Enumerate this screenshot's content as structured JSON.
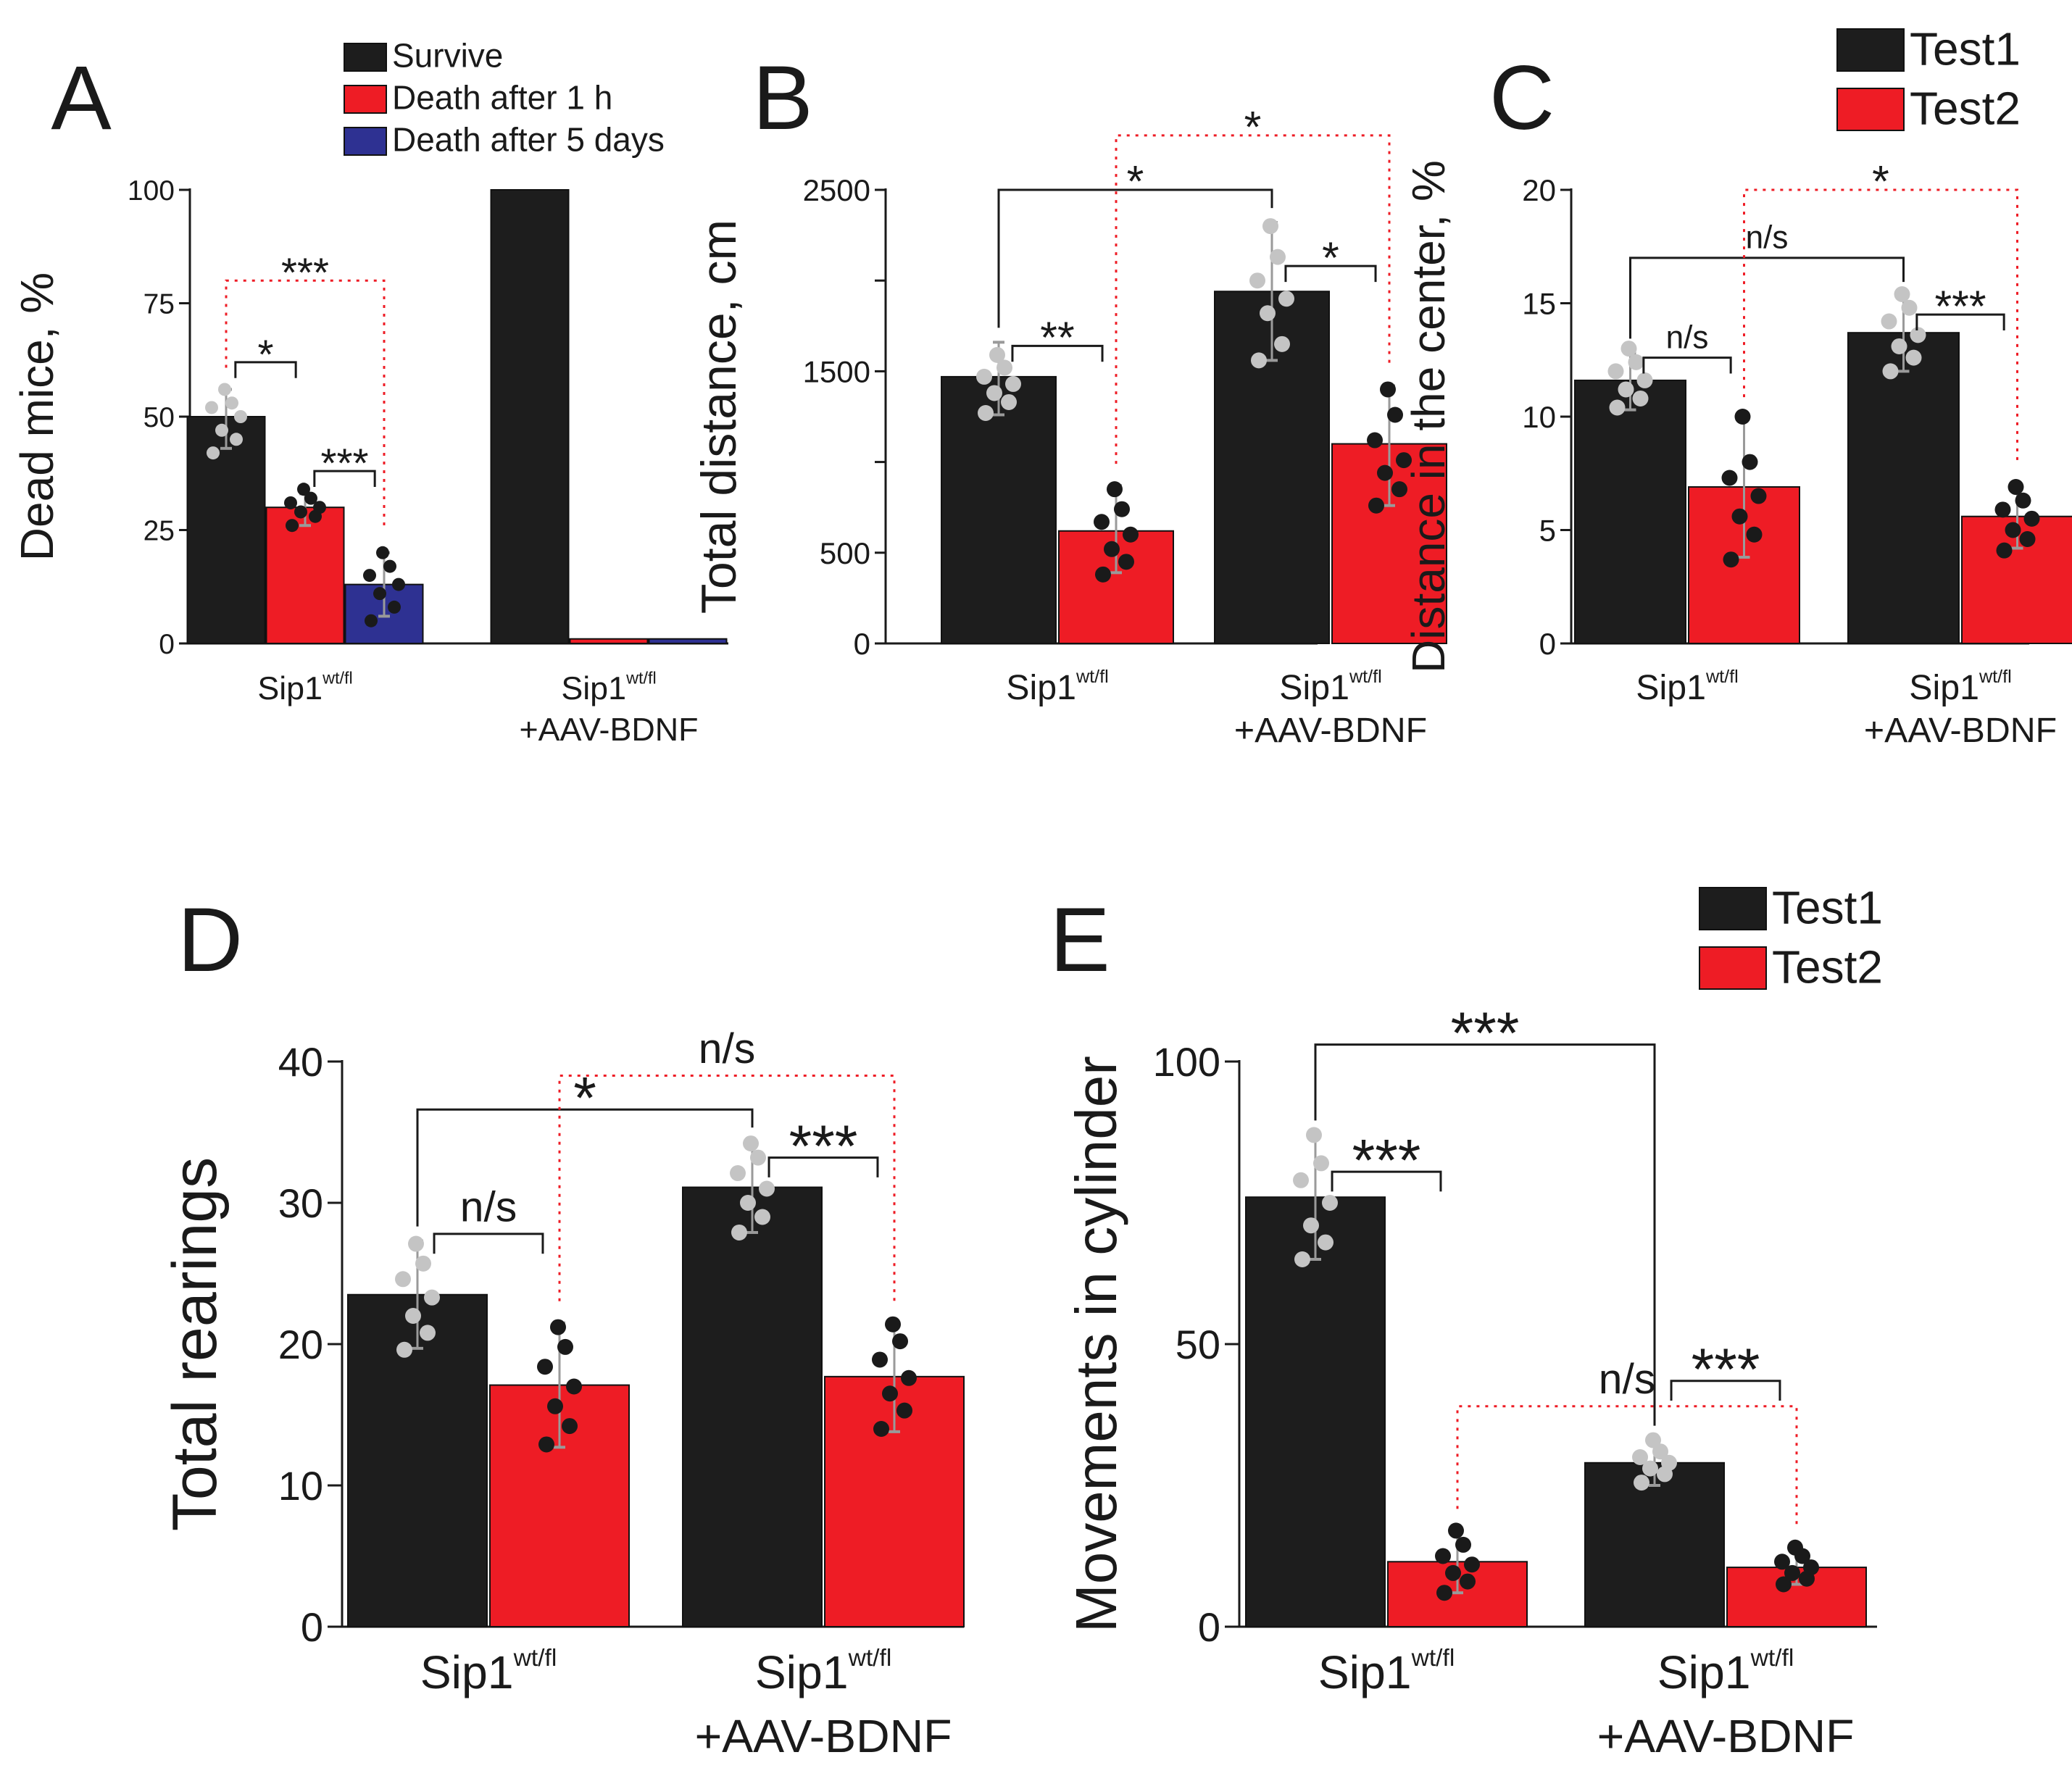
{
  "colors": {
    "black": "#1d1d1d",
    "red": "#ee1c25",
    "blue": "#2e3192",
    "dot_gray": "#c4c4c4",
    "dot_black": "#1a1a1a",
    "err_gray": "#9a9a9a",
    "axis": "#1a1a1a",
    "sig_red": "#ee1c25"
  },
  "chart_data": [
    {
      "panel": "A",
      "type": "bar",
      "ylabel": "Dead mice, %",
      "ylim": [
        0,
        100
      ],
      "ticks": [
        0,
        25,
        50,
        75,
        100
      ],
      "legend": {
        "placement": "top-right",
        "entries": [
          {
            "label": "Survive",
            "color": "#1d1d1d"
          },
          {
            "label": "Death after 1 h",
            "color": "#ee1c25"
          },
          {
            "label": "Death after 5 days",
            "color": "#2e3192"
          }
        ]
      },
      "groups": [
        {
          "label": "Sip1",
          "sup": "wt/fl",
          "line2": ""
        },
        {
          "label": "Sip1",
          "sup": "wt/fl",
          "line2": "+AAV-BDNF"
        }
      ],
      "bars": [
        {
          "group": 0,
          "slot": 0,
          "n": 3,
          "value": 50,
          "color": "#1d1d1d",
          "err": [
            43,
            56
          ],
          "dots": [
            42,
            45,
            47,
            50,
            52,
            53,
            56
          ],
          "dot_color": "#c4c4c4"
        },
        {
          "group": 0,
          "slot": 1,
          "n": 3,
          "value": 30,
          "color": "#ee1c25",
          "err": [
            26,
            33
          ],
          "dots": [
            26,
            28,
            29,
            30,
            31,
            32,
            34
          ],
          "dot_color": "#1a1a1a"
        },
        {
          "group": 0,
          "slot": 2,
          "n": 3,
          "value": 13,
          "color": "#2e3192",
          "err": [
            6,
            20
          ],
          "dots": [
            5,
            8,
            11,
            13,
            15,
            17,
            20
          ],
          "dot_color": "#1a1a1a"
        },
        {
          "group": 1,
          "slot": 0,
          "n": 3,
          "value": 100,
          "color": "#1d1d1d"
        },
        {
          "group": 1,
          "slot": 1,
          "n": 3,
          "value": 1,
          "color": "#ee1c25"
        },
        {
          "group": 1,
          "slot": 2,
          "n": 3,
          "value": 1,
          "color": "#2e3192"
        }
      ],
      "brackets": [
        {
          "a": 0,
          "b": 1,
          "y": 62,
          "label": "*",
          "color": "black",
          "style": "solid"
        },
        {
          "a": 1,
          "b": 2,
          "y": 38,
          "label": "***",
          "color": "black",
          "style": "solid"
        },
        {
          "a": 0,
          "b": 2,
          "y": 80,
          "label": "***",
          "color": "red",
          "style": "dotted"
        }
      ]
    },
    {
      "panel": "B",
      "type": "bar",
      "ylabel": "Total distance, cm",
      "ylim": [
        0,
        2500
      ],
      "ticks": [
        0,
        500,
        1500,
        2500
      ],
      "minor_ticks": [
        1000,
        2000
      ],
      "groups": [
        {
          "label": "Sip1",
          "sup": "wt/fl",
          "line2": ""
        },
        {
          "label": "Sip1",
          "sup": "wt/fl",
          "line2": "+AAV-BDNF"
        }
      ],
      "bars": [
        {
          "group": 0,
          "slot": 0,
          "n": 2,
          "value": 1470,
          "color": "#1d1d1d",
          "err": [
            1260,
            1660
          ],
          "dots": [
            1270,
            1330,
            1380,
            1430,
            1470,
            1520,
            1590
          ],
          "dot_color": "#c4c4c4"
        },
        {
          "group": 0,
          "slot": 1,
          "n": 2,
          "value": 620,
          "color": "#ee1c25",
          "err": [
            390,
            870
          ],
          "dots": [
            380,
            450,
            520,
            600,
            670,
            740,
            850
          ],
          "dot_color": "#1a1a1a"
        },
        {
          "group": 1,
          "slot": 0,
          "n": 2,
          "value": 1940,
          "color": "#1d1d1d",
          "err": [
            1560,
            2320
          ],
          "dots": [
            1560,
            1650,
            1820,
            1900,
            2000,
            2130,
            2300
          ],
          "dot_color": "#c4c4c4"
        },
        {
          "group": 1,
          "slot": 1,
          "n": 2,
          "value": 1100,
          "color": "#ee1c25",
          "err": [
            760,
            1420
          ],
          "dots": [
            760,
            850,
            940,
            1010,
            1120,
            1260,
            1400
          ],
          "dot_color": "#1a1a1a"
        }
      ],
      "brackets": [
        {
          "a": 0,
          "b": 1,
          "y": 1640,
          "label": "**",
          "color": "black",
          "style": "solid"
        },
        {
          "a": 2,
          "b": 3,
          "y": 2080,
          "label": "*",
          "color": "black",
          "style": "solid"
        },
        {
          "a": 0,
          "b": 2,
          "y": 2500,
          "label": "*",
          "color": "black",
          "style": "solid"
        },
        {
          "a": 1,
          "b": 3,
          "y": 2800,
          "label": "*",
          "color": "red",
          "style": "dotted"
        }
      ]
    },
    {
      "panel": "C",
      "type": "bar",
      "ylabel": "Distance in the center, %",
      "ylim": [
        0,
        20
      ],
      "ticks": [
        0,
        5,
        10,
        15,
        20
      ],
      "legend": {
        "placement": "top-right",
        "entries": [
          {
            "label": "Test1",
            "color": "#1d1d1d"
          },
          {
            "label": "Test2",
            "color": "#ee1c25"
          }
        ]
      },
      "groups": [
        {
          "label": "Sip1",
          "sup": "wt/fl",
          "line2": ""
        },
        {
          "label": "Sip1",
          "sup": "wt/fl",
          "line2": "+AAV-BDNF"
        }
      ],
      "bars": [
        {
          "group": 0,
          "slot": 0,
          "n": 2,
          "value": 11.6,
          "color": "#1d1d1d",
          "err": [
            10.3,
            12.8
          ],
          "dots": [
            10.4,
            10.8,
            11.2,
            11.6,
            12.0,
            12.4,
            13.0
          ],
          "dot_color": "#c4c4c4"
        },
        {
          "group": 0,
          "slot": 1,
          "n": 2,
          "value": 6.9,
          "color": "#ee1c25",
          "err": [
            3.8,
            9.9
          ],
          "dots": [
            3.7,
            4.8,
            5.6,
            6.5,
            7.3,
            8.0,
            10.0
          ],
          "dot_color": "#1a1a1a"
        },
        {
          "group": 1,
          "slot": 0,
          "n": 2,
          "value": 13.7,
          "color": "#1d1d1d",
          "err": [
            12.0,
            15.3
          ],
          "dots": [
            12.0,
            12.6,
            13.1,
            13.6,
            14.2,
            14.8,
            15.4
          ],
          "dot_color": "#c4c4c4"
        },
        {
          "group": 1,
          "slot": 1,
          "n": 2,
          "value": 5.6,
          "color": "#ee1c25",
          "err": [
            4.2,
            7.0
          ],
          "dots": [
            4.1,
            4.6,
            5.0,
            5.5,
            5.9,
            6.3,
            6.9
          ],
          "dot_color": "#1a1a1a"
        }
      ],
      "brackets": [
        {
          "a": 0,
          "b": 1,
          "y": 12.6,
          "label": "n/s",
          "color": "black",
          "style": "solid"
        },
        {
          "a": 2,
          "b": 3,
          "y": 14.5,
          "label": "***",
          "color": "black",
          "style": "solid"
        },
        {
          "a": 0,
          "b": 2,
          "y": 17.0,
          "label": "n/s",
          "color": "black",
          "style": "solid"
        },
        {
          "a": 1,
          "b": 3,
          "y": 20.0,
          "label": "*",
          "color": "red",
          "style": "dotted"
        }
      ]
    },
    {
      "panel": "D",
      "type": "bar",
      "ylabel": "Total rearings",
      "ylim": [
        0,
        40
      ],
      "ticks": [
        0,
        10,
        20,
        30,
        40
      ],
      "groups": [
        {
          "label": "Sip1",
          "sup": "wt/fl",
          "line2": ""
        },
        {
          "label": "Sip1",
          "sup": "wt/fl",
          "line2": "+AAV-BDNF"
        }
      ],
      "bars": [
        {
          "group": 0,
          "slot": 0,
          "n": 2,
          "value": 23.5,
          "color": "#1d1d1d",
          "err": [
            19.7,
            27.3
          ],
          "dots": [
            19.6,
            20.8,
            22.0,
            23.3,
            24.6,
            25.7,
            27.1
          ],
          "dot_color": "#c4c4c4"
        },
        {
          "group": 0,
          "slot": 1,
          "n": 2,
          "value": 17.1,
          "color": "#ee1c25",
          "err": [
            12.7,
            21.5
          ],
          "dots": [
            12.9,
            14.2,
            15.6,
            17.0,
            18.4,
            19.8,
            21.2
          ],
          "dot_color": "#1a1a1a"
        },
        {
          "group": 1,
          "slot": 0,
          "n": 2,
          "value": 31.1,
          "color": "#1d1d1d",
          "err": [
            27.9,
            34.3
          ],
          "dots": [
            27.9,
            29.0,
            30.0,
            31.0,
            32.1,
            33.2,
            34.2
          ],
          "dot_color": "#c4c4c4"
        },
        {
          "group": 1,
          "slot": 1,
          "n": 2,
          "value": 17.7,
          "color": "#ee1c25",
          "err": [
            13.8,
            21.4
          ],
          "dots": [
            14.0,
            15.3,
            16.5,
            17.6,
            18.9,
            20.2,
            21.4
          ],
          "dot_color": "#1a1a1a"
        }
      ],
      "brackets": [
        {
          "a": 0,
          "b": 1,
          "y": 27.8,
          "label": "n/s",
          "color": "black",
          "style": "solid"
        },
        {
          "a": 2,
          "b": 3,
          "y": 33.2,
          "label": "***",
          "color": "black",
          "style": "solid"
        },
        {
          "a": 0,
          "b": 2,
          "y": 36.6,
          "label": "*",
          "color": "black",
          "style": "solid"
        },
        {
          "a": 1,
          "b": 3,
          "y": 39.0,
          "label": "n/s",
          "color": "red",
          "style": "dotted"
        }
      ]
    },
    {
      "panel": "E",
      "type": "bar",
      "ylabel": "Movements in cylinder",
      "ylim": [
        0,
        100
      ],
      "ticks": [
        0,
        50,
        100
      ],
      "legend": {
        "placement": "top-right",
        "entries": [
          {
            "label": "Test1",
            "color": "#1d1d1d"
          },
          {
            "label": "Test2",
            "color": "#ee1c25"
          }
        ]
      },
      "groups": [
        {
          "label": "Sip1",
          "sup": "wt/fl",
          "line2": ""
        },
        {
          "label": "Sip1",
          "sup": "wt/fl",
          "line2": "+AAV-BDNF"
        }
      ],
      "bars": [
        {
          "group": 0,
          "slot": 0,
          "n": 2,
          "value": 76,
          "color": "#1d1d1d",
          "err": [
            65,
            87
          ],
          "dots": [
            65,
            68,
            71,
            75,
            79,
            82,
            87
          ],
          "dot_color": "#c4c4c4"
        },
        {
          "group": 0,
          "slot": 1,
          "n": 2,
          "value": 11.5,
          "color": "#ee1c25",
          "err": [
            6,
            17
          ],
          "dots": [
            6,
            8,
            9.5,
            11,
            12.5,
            14.5,
            17
          ],
          "dot_color": "#1a1a1a"
        },
        {
          "group": 1,
          "slot": 0,
          "n": 2,
          "value": 29,
          "color": "#1d1d1d",
          "err": [
            25,
            33
          ],
          "dots": [
            25.5,
            27,
            28,
            29,
            30,
            31,
            33
          ],
          "dot_color": "#c4c4c4"
        },
        {
          "group": 1,
          "slot": 1,
          "n": 2,
          "value": 10.5,
          "color": "#ee1c25",
          "err": [
            7.5,
            14
          ],
          "dots": [
            7.5,
            8.5,
            9.5,
            10.5,
            11.5,
            12.5,
            14
          ],
          "dot_color": "#1a1a1a"
        }
      ],
      "brackets": [
        {
          "a": 0,
          "b": 1,
          "y": 80.5,
          "label": "***",
          "color": "black",
          "style": "solid"
        },
        {
          "a": 2,
          "b": 3,
          "y": 43.5,
          "label": "***",
          "color": "black",
          "style": "solid"
        },
        {
          "a": 0,
          "b": 2,
          "y": 103,
          "label": "***",
          "color": "black",
          "style": "solid"
        },
        {
          "a": 1,
          "b": 3,
          "y": 39,
          "label": "n/s",
          "color": "red",
          "style": "dotted"
        }
      ]
    }
  ]
}
